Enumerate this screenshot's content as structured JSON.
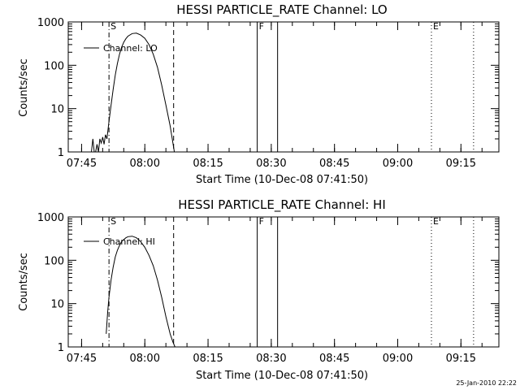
{
  "chart_data": [
    {
      "type": "line",
      "title": "HESSI PARTICLE_RATE Channel: LO",
      "xlabel": "Start Time (10-Dec-08 07:41:50)",
      "ylabel": "Counts/sec",
      "y_scale": "log",
      "xlim": [
        "07:41:50",
        "09:24"
      ],
      "ylim": [
        1,
        1000
      ],
      "x_tick_labels": [
        "07:45",
        "08:00",
        "08:15",
        "08:30",
        "08:45",
        "09:00",
        "09:15"
      ],
      "y_tick_labels": [
        "1",
        "10",
        "100",
        "1000"
      ],
      "legend": {
        "position": "top-left",
        "entries": [
          "Channel: LO"
        ]
      },
      "markers": [
        {
          "label": "S",
          "time": "07:51:30",
          "style": "dash-dot"
        },
        {
          "label": "",
          "time": "08:06:50",
          "style": "dashed"
        },
        {
          "label": "F",
          "time": "08:26:40",
          "style": "solid"
        },
        {
          "label": "",
          "time": "08:31:30",
          "style": "solid"
        },
        {
          "label": "E",
          "time": "09:08",
          "style": "dotted"
        },
        {
          "label": "",
          "time": "09:18",
          "style": "dotted"
        }
      ],
      "series": [
        {
          "name": "Channel: LO",
          "x": [
            "07:47:20",
            "07:47:40",
            "07:48:00",
            "07:48:20",
            "07:48:40",
            "07:49:00",
            "07:49:20",
            "07:49:40",
            "07:50:00",
            "07:50:20",
            "07:50:40",
            "07:51:00",
            "07:51:30",
            "07:52:00",
            "07:52:30",
            "07:53:00",
            "07:53:30",
            "07:54:00",
            "07:54:30",
            "07:55:00",
            "07:55:30",
            "07:56:00",
            "07:57:00",
            "07:58:00",
            "07:59:00",
            "08:00:00",
            "08:01:00",
            "08:02:00",
            "08:03:00",
            "08:04:00",
            "08:05:00",
            "08:06:00",
            "08:06:30",
            "08:07:00"
          ],
          "values": [
            1,
            2,
            1,
            1,
            1.5,
            1,
            2,
            1.6,
            2.2,
            1.5,
            2.5,
            2,
            5,
            12,
            28,
            60,
            110,
            180,
            260,
            340,
            410,
            470,
            540,
            550,
            500,
            420,
            300,
            180,
            90,
            35,
            12,
            4,
            2,
            1
          ]
        }
      ]
    },
    {
      "type": "line",
      "title": "HESSI PARTICLE_RATE Channel: HI",
      "xlabel": "Start Time (10-Dec-08 07:41:50)",
      "ylabel": "Counts/sec",
      "y_scale": "log",
      "xlim": [
        "07:41:50",
        "09:24"
      ],
      "ylim": [
        1,
        1000
      ],
      "x_tick_labels": [
        "07:45",
        "08:00",
        "08:15",
        "08:30",
        "08:45",
        "09:00",
        "09:15"
      ],
      "y_tick_labels": [
        "1",
        "10",
        "100",
        "1000"
      ],
      "legend": {
        "position": "top-left",
        "entries": [
          "Channel: HI"
        ]
      },
      "markers": [
        {
          "label": "S",
          "time": "07:51:30",
          "style": "dash-dot"
        },
        {
          "label": "",
          "time": "08:06:50",
          "style": "dashed"
        },
        {
          "label": "F",
          "time": "08:26:40",
          "style": "solid"
        },
        {
          "label": "",
          "time": "08:31:30",
          "style": "solid"
        },
        {
          "label": "E",
          "time": "09:08",
          "style": "dotted"
        },
        {
          "label": "",
          "time": "09:18",
          "style": "dotted"
        }
      ],
      "series": [
        {
          "name": "Channel: HI",
          "x": [
            "07:50:50",
            "07:51:10",
            "07:51:30",
            "07:52:00",
            "07:52:30",
            "07:53:00",
            "07:53:30",
            "07:54:00",
            "07:54:30",
            "07:55:00",
            "07:55:30",
            "07:56:00",
            "07:57:00",
            "07:58:00",
            "07:59:00",
            "08:00:00",
            "08:01:00",
            "08:02:00",
            "08:03:00",
            "08:04:00",
            "08:05:00",
            "08:06:00",
            "08:06:40",
            "08:07:10"
          ],
          "values": [
            2,
            6,
            14,
            35,
            70,
            120,
            170,
            220,
            270,
            300,
            330,
            350,
            360,
            330,
            270,
            200,
            130,
            75,
            35,
            14,
            5,
            2,
            1.3,
            1
          ]
        }
      ]
    }
  ],
  "footer": {
    "timestamp": "25-Jan-2010 22:22"
  }
}
